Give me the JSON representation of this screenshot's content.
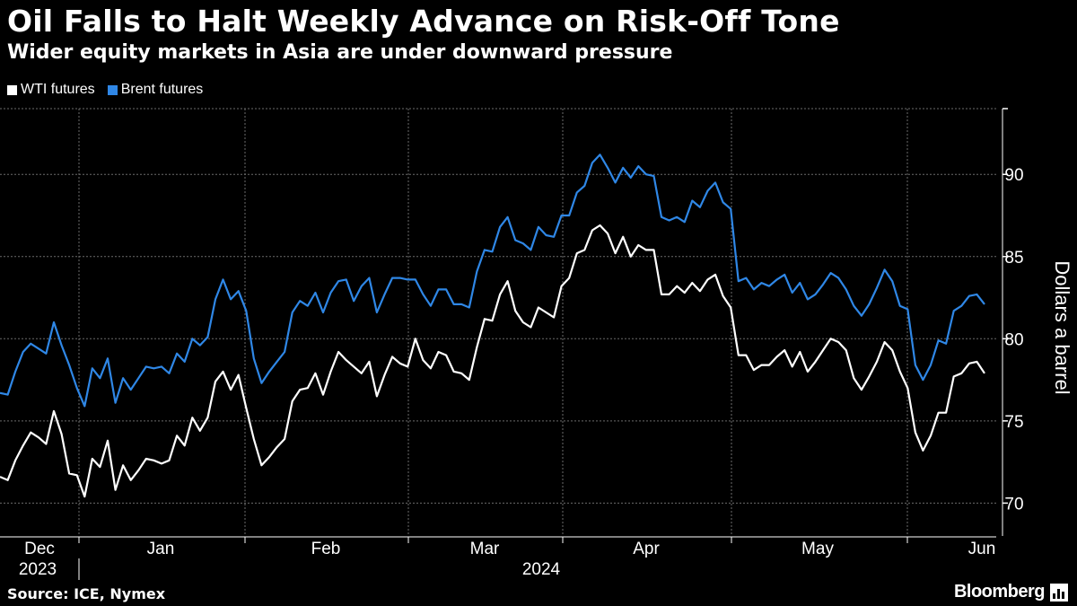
{
  "title": "Oil Falls to Halt Weekly Advance on Risk-Off Tone",
  "subtitle": "Wider equity markets in Asia are under downward pressure",
  "legend": [
    {
      "label": "WTI futures",
      "color": "#ffffff"
    },
    {
      "label": "Brent futures",
      "color": "#2f87e6"
    }
  ],
  "source": "Source: ICE, Nymex",
  "brand": "Bloomberg",
  "chart_data": {
    "type": "line",
    "title": "Oil Falls to Halt Weekly Advance on Risk-Off Tone",
    "ylabel": "Dollars a barrel",
    "xlabel": "",
    "ylim": [
      68,
      94
    ],
    "yticks": [
      70,
      75,
      80,
      85,
      90
    ],
    "grid": true,
    "x_month_labels": [
      "Dec",
      "Jan",
      "Feb",
      "Mar",
      "Apr",
      "May",
      "Jun"
    ],
    "x_year_labels": [
      "2023",
      "2024"
    ],
    "series": [
      {
        "name": "WTI futures",
        "color": "#ffffff",
        "values": [
          71.6,
          71.4,
          72.6,
          73.5,
          74.3,
          74.0,
          73.6,
          75.6,
          74.2,
          71.8,
          71.7,
          70.4,
          72.7,
          72.2,
          73.8,
          70.8,
          72.3,
          71.4,
          72.0,
          72.7,
          72.6,
          72.4,
          72.6,
          74.1,
          73.5,
          75.2,
          74.4,
          75.2,
          77.4,
          78.0,
          76.9,
          77.8,
          75.8,
          73.9,
          72.3,
          72.8,
          73.4,
          73.9,
          76.2,
          76.9,
          77.0,
          77.9,
          76.6,
          78.0,
          79.2,
          78.7,
          78.3,
          77.9,
          78.6,
          76.5,
          77.8,
          78.9,
          78.5,
          78.3,
          80.0,
          78.7,
          78.2,
          79.2,
          79.0,
          78.0,
          77.9,
          77.5,
          79.5,
          81.2,
          81.1,
          82.7,
          83.5,
          81.7,
          81.0,
          80.7,
          81.9,
          81.6,
          81.3,
          83.2,
          83.7,
          85.2,
          85.4,
          86.6,
          86.9,
          86.4,
          85.2,
          86.2,
          85.0,
          85.7,
          85.4,
          85.4,
          82.7,
          82.7,
          83.2,
          82.8,
          83.4,
          82.9,
          83.6,
          83.9,
          82.6,
          81.9,
          79.0,
          79.0,
          78.1,
          78.4,
          78.4,
          78.9,
          79.3,
          78.3,
          79.2,
          78.0,
          78.6,
          79.3,
          80.0,
          79.8,
          79.3,
          77.6,
          76.9,
          77.7,
          78.6,
          79.8,
          79.3,
          78.0,
          77.0,
          74.3,
          73.2,
          74.1,
          75.5,
          75.5,
          77.7,
          77.9,
          78.5,
          78.6,
          77.9
        ]
      },
      {
        "name": "Brent futures",
        "color": "#2f87e6",
        "values": [
          76.7,
          76.6,
          78.0,
          79.2,
          79.7,
          79.4,
          79.1,
          81.0,
          79.6,
          78.4,
          77.0,
          75.9,
          78.2,
          77.6,
          78.8,
          76.1,
          77.6,
          76.9,
          77.6,
          78.3,
          78.2,
          78.3,
          77.9,
          79.1,
          78.6,
          80.0,
          79.6,
          80.1,
          82.4,
          83.6,
          82.4,
          82.9,
          81.7,
          78.8,
          77.3,
          78.0,
          78.6,
          79.2,
          81.6,
          82.3,
          82.0,
          82.8,
          81.6,
          82.8,
          83.5,
          83.6,
          82.3,
          83.2,
          83.7,
          81.6,
          82.7,
          83.7,
          83.7,
          83.6,
          83.6,
          82.7,
          82.0,
          83.0,
          83.0,
          82.1,
          82.1,
          81.9,
          84.1,
          85.4,
          85.3,
          86.8,
          87.4,
          86.0,
          85.8,
          85.4,
          86.8,
          86.3,
          86.2,
          87.5,
          87.5,
          88.9,
          89.3,
          90.7,
          91.2,
          90.4,
          89.5,
          90.4,
          89.8,
          90.5,
          90.0,
          89.9,
          87.4,
          87.2,
          87.4,
          87.1,
          88.4,
          88.0,
          89.0,
          89.5,
          88.3,
          87.9,
          83.5,
          83.7,
          83.0,
          83.4,
          83.2,
          83.6,
          83.9,
          82.8,
          83.4,
          82.4,
          82.7,
          83.3,
          84.0,
          83.7,
          83.0,
          82.0,
          81.4,
          82.1,
          83.1,
          84.2,
          83.5,
          82.0,
          81.8,
          78.4,
          77.5,
          78.4,
          79.9,
          79.7,
          81.7,
          82.0,
          82.6,
          82.7,
          82.1
        ]
      }
    ]
  }
}
